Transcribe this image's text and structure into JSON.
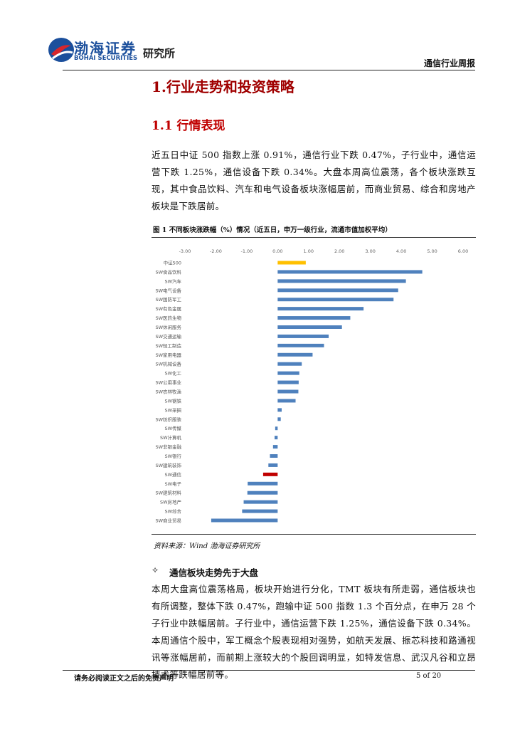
{
  "header": {
    "logo_name": "渤海证券",
    "logo_english": "BOHAI SECURITIES",
    "logo_unit": "研究所",
    "report_type": "通信行业周报"
  },
  "section": {
    "title": "1.行业走势和投资策略",
    "subsection": {
      "title": "1.1 行情表现",
      "paragraph": "近五日中证 500 指数上涨 0.91%，通信行业下跌 0.47%，子行业中，通信运营下跌 1.25%，通信设备下跌 0.34%。大盘本周高位震荡，各个板块涨跌互现，其中食品饮料、汽车和电气设备板块涨幅居前，而商业贸易、综合和房地产板块是下跌居前。"
    }
  },
  "figure": {
    "caption": "图 1  不同板块涨跌幅（%）情况（近五日，申万一级行业，流通市值加权平均）",
    "chart": {
      "type": "bar",
      "orientation": "horizontal",
      "categories": [
        "中证500",
        "SW食品饮料",
        "SW汽车",
        "SW电气设备",
        "SW国防军工",
        "SW有色金属",
        "SW医药生物",
        "SW休闲服务",
        "SW交通运输",
        "SW轻工制造",
        "SW家用电器",
        "SW机械设备",
        "SW化工",
        "SW公用事业",
        "SW农林牧渔",
        "SW钢铁",
        "SW采掘",
        "SW纺织服装",
        "SW传媒",
        "SW计算机",
        "SW非银金融",
        "SW银行",
        "SW建筑装饰",
        "SW通信",
        "SW电子",
        "SW建筑材料",
        "SW房地产",
        "SW综合",
        "SW商业贸易"
      ],
      "values": [
        0.91,
        4.68,
        4.15,
        3.9,
        3.75,
        2.78,
        2.35,
        2.08,
        1.65,
        1.5,
        1.13,
        0.78,
        0.7,
        0.68,
        0.67,
        0.58,
        0.13,
        0.1,
        -0.08,
        -0.1,
        -0.15,
        -0.25,
        -0.3,
        -0.47,
        -0.97,
        -0.98,
        -1.1,
        -1.15,
        -2.15
      ],
      "colors": [
        "#ffc000",
        "#4f81bd",
        "#4f81bd",
        "#4f81bd",
        "#4f81bd",
        "#4f81bd",
        "#4f81bd",
        "#4f81bd",
        "#4f81bd",
        "#4f81bd",
        "#4f81bd",
        "#4f81bd",
        "#4f81bd",
        "#4f81bd",
        "#4f81bd",
        "#4f81bd",
        "#4f81bd",
        "#4f81bd",
        "#4f81bd",
        "#4f81bd",
        "#4f81bd",
        "#4f81bd",
        "#4f81bd",
        "#c00000",
        "#4f81bd",
        "#4f81bd",
        "#4f81bd",
        "#4f81bd",
        "#4f81bd"
      ],
      "xlim": [
        -3,
        6
      ],
      "xticks": [
        {
          "value": -3,
          "label": "-3.00"
        },
        {
          "value": -2,
          "label": "-2.00"
        },
        {
          "value": -1,
          "label": "-1.00"
        },
        {
          "value": 0,
          "label": "0.00"
        },
        {
          "value": 1,
          "label": "1.00"
        },
        {
          "value": 2,
          "label": "2.00"
        },
        {
          "value": 3,
          "label": "3.00"
        },
        {
          "value": 4,
          "label": "4.00"
        },
        {
          "value": 5,
          "label": "5.00"
        },
        {
          "value": 6,
          "label": "6.00"
        }
      ]
    },
    "source": "资料来源：Wind  渤海证券研究所"
  },
  "bullet": {
    "symbol": "✧",
    "title": "通信板块走势先于大盘",
    "paragraph": "本周大盘高位震荡格局，板块开始进行分化，TMT 板块有所走弱，通信板块也有所调整，整体下跌 0.47%，跑输中证 500 指数 1.3 个百分点，在申万 28 个子行业中跌幅居前。子行业中，通信运营下跌 1.25%，通信设备下跌 0.34%。本周通信个股中，军工概念个股表现相对强势，如航天发展、振芯科技和路通视讯等涨幅居前，而前期上涨较大的个股回调明显，如特发信息、武汉凡谷和立昂技术等跌幅居前等。"
  },
  "footer": {
    "disclaimer": "请务必阅读正文之后的免责声明",
    "page": "5 of 20"
  }
}
